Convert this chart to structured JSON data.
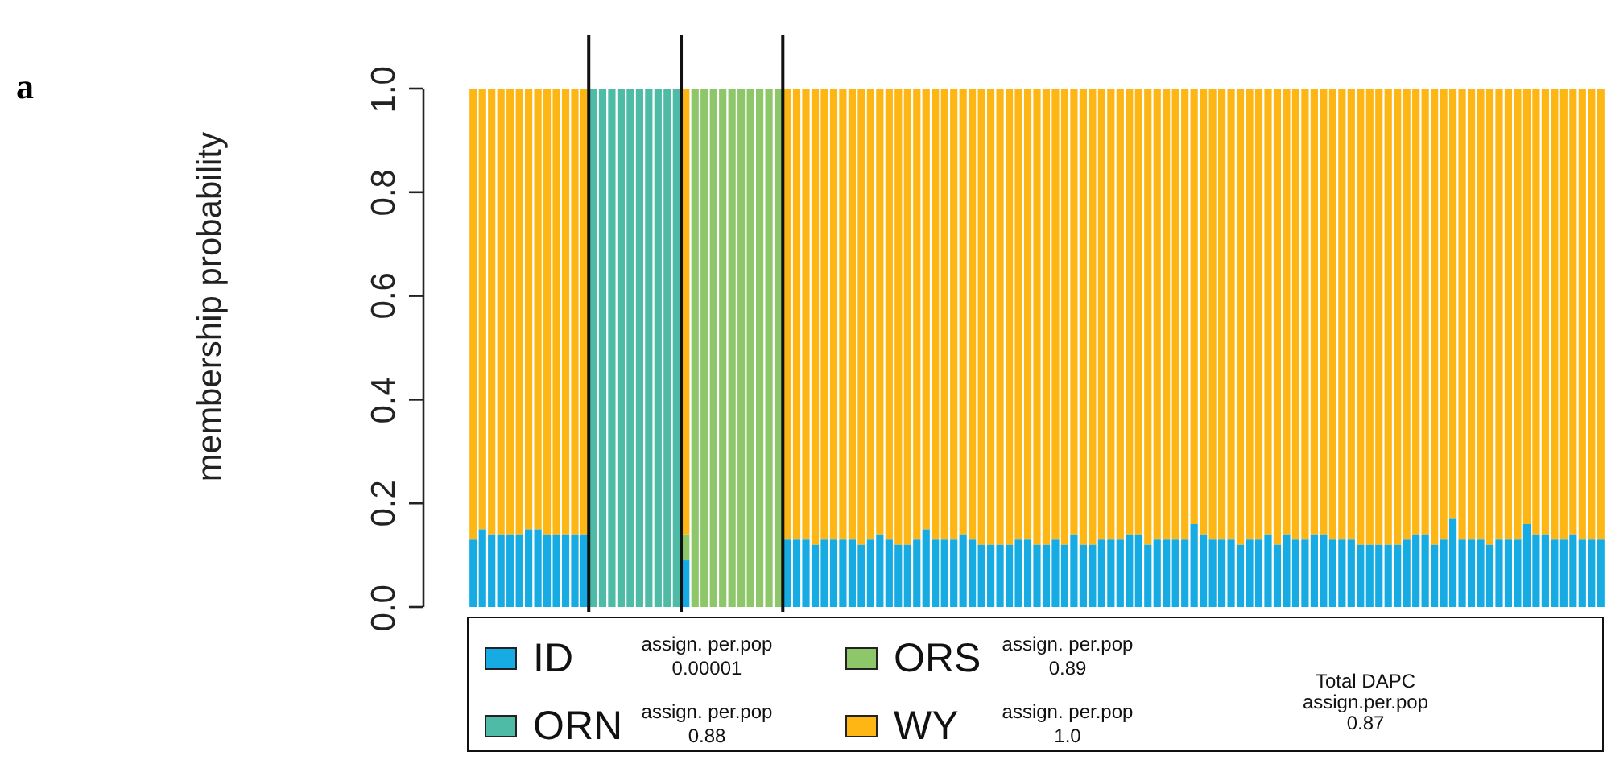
{
  "chart_data": {
    "type": "bar",
    "title": "a",
    "ylabel": "membership probability",
    "categories": [
      null,
      null,
      null,
      null,
      null,
      null,
      null,
      null,
      null,
      null,
      null,
      null,
      null,
      null,
      null,
      null,
      null,
      null,
      null,
      null,
      null,
      null,
      null,
      null,
      null,
      null,
      null,
      null,
      null,
      null,
      null,
      null,
      null,
      null,
      null,
      null,
      null,
      null,
      null,
      null,
      null,
      null,
      null,
      null,
      null,
      null,
      null,
      null,
      null,
      null,
      null,
      null,
      null,
      null,
      null,
      null,
      null,
      null,
      null,
      null,
      null,
      null,
      null,
      null,
      null,
      null,
      null,
      null,
      null,
      null,
      null,
      null,
      null,
      null,
      null,
      null,
      null,
      null,
      null,
      null,
      null,
      null,
      null,
      null,
      null,
      null,
      null,
      null,
      null,
      null,
      null,
      null,
      null,
      null,
      null,
      null,
      null,
      null,
      null,
      null,
      null,
      null,
      null,
      null,
      null,
      null,
      null,
      null,
      null,
      null,
      null,
      null,
      null,
      null,
      null,
      null,
      null,
      null,
      null,
      null,
      null,
      null,
      null
    ],
    "series": [
      {
        "name": "ID",
        "color": "#17abe3",
        "values": [
          0.13,
          0.15,
          0.14,
          0.14,
          0.14,
          0.14,
          0.15,
          0.15,
          0.14,
          0.14,
          0.14,
          0.14,
          0.14,
          null,
          null,
          null,
          null,
          null,
          null,
          null,
          null,
          null,
          null,
          0.09,
          null,
          null,
          null,
          null,
          null,
          null,
          null,
          null,
          null,
          null,
          0.13,
          0.13,
          0.13,
          0.12,
          0.13,
          0.13,
          0.13,
          0.13,
          0.12,
          0.13,
          0.14,
          0.13,
          0.12,
          0.12,
          0.13,
          0.15,
          0.13,
          0.13,
          0.13,
          0.14,
          0.13,
          0.12,
          0.12,
          0.12,
          0.12,
          0.13,
          0.13,
          0.12,
          0.12,
          0.13,
          0.12,
          0.14,
          0.12,
          0.12,
          0.13,
          0.13,
          0.13,
          0.14,
          0.14,
          0.12,
          0.13,
          0.13,
          0.13,
          0.13,
          0.16,
          0.14,
          0.13,
          0.13,
          0.13,
          0.12,
          0.13,
          0.13,
          0.14,
          0.12,
          0.14,
          0.13,
          0.13,
          0.14,
          0.14,
          0.13,
          0.13,
          0.13,
          0.12,
          0.12,
          0.12,
          0.12,
          0.12,
          0.13,
          0.14,
          0.14,
          0.12,
          0.13,
          0.17,
          0.13,
          0.13,
          0.13,
          0.12,
          0.13,
          0.13,
          0.13,
          0.16,
          0.14,
          0.14,
          0.13,
          0.13,
          0.14,
          0.13,
          0.13,
          0.13
        ]
      },
      {
        "name": "ORN",
        "color": "#4dbba6",
        "values": [
          null,
          null,
          null,
          null,
          null,
          null,
          null,
          null,
          null,
          null,
          null,
          null,
          null,
          1,
          1,
          1,
          1,
          1,
          1,
          1,
          1,
          1,
          1,
          null,
          null,
          null,
          null,
          null,
          null,
          null,
          null,
          null,
          null,
          null,
          null,
          null,
          null,
          null,
          null,
          null,
          null,
          null,
          null,
          null,
          null,
          null,
          null,
          null,
          null,
          null,
          null,
          null,
          null,
          null,
          null,
          null,
          null,
          null,
          null,
          null,
          null,
          null,
          null,
          null,
          null,
          null,
          null,
          null,
          null,
          null,
          null,
          null,
          null,
          null,
          null,
          null,
          null,
          null,
          null,
          null,
          null,
          null,
          null,
          null,
          null,
          null,
          null,
          null,
          null,
          null,
          null,
          null,
          null,
          null,
          null,
          null,
          null,
          null,
          null,
          null,
          null,
          null,
          null,
          null,
          null,
          null,
          null,
          null,
          null,
          null,
          null,
          null,
          null,
          null,
          null,
          null,
          null,
          null,
          null,
          null,
          null,
          null,
          null
        ]
      },
      {
        "name": "ORS",
        "color": "#8ec76a",
        "values": [
          null,
          null,
          null,
          null,
          null,
          null,
          null,
          null,
          null,
          null,
          null,
          null,
          null,
          null,
          null,
          null,
          null,
          null,
          null,
          null,
          null,
          null,
          null,
          0.05,
          1,
          1,
          1,
          1,
          1,
          1,
          1,
          1,
          1,
          1,
          null,
          null,
          null,
          null,
          null,
          null,
          null,
          null,
          null,
          null,
          null,
          null,
          null,
          null,
          null,
          null,
          null,
          null,
          null,
          null,
          null,
          null,
          null,
          null,
          null,
          null,
          null,
          null,
          null,
          null,
          null,
          null,
          null,
          null,
          null,
          null,
          null,
          null,
          null,
          null,
          null,
          null,
          null,
          null,
          null,
          null,
          null,
          null,
          null,
          null,
          null,
          null,
          null,
          null,
          null,
          null,
          null,
          null,
          null,
          null,
          null,
          null,
          null,
          null,
          null,
          null,
          null,
          null,
          null,
          null,
          null,
          null,
          null,
          null,
          null,
          null,
          null,
          null,
          null,
          null,
          null,
          null,
          null,
          null,
          null,
          null,
          null,
          null,
          null
        ]
      },
      {
        "name": "WY",
        "color": "#fdb614",
        "values": [
          0.87,
          0.85,
          0.86,
          0.86,
          0.86,
          0.86,
          0.85,
          0.85,
          0.86,
          0.86,
          0.86,
          0.86,
          0.86,
          null,
          null,
          null,
          null,
          null,
          null,
          null,
          null,
          null,
          null,
          0.86,
          null,
          null,
          null,
          null,
          null,
          null,
          null,
          null,
          null,
          null,
          0.87,
          0.87,
          0.87,
          0.88,
          0.87,
          0.87,
          0.87,
          0.87,
          0.88,
          0.87,
          0.86,
          0.87,
          0.88,
          0.88,
          0.87,
          0.85,
          0.87,
          0.87,
          0.87,
          0.86,
          0.87,
          0.88,
          0.88,
          0.88,
          0.88,
          0.87,
          0.87,
          0.88,
          0.88,
          0.87,
          0.88,
          0.86,
          0.88,
          0.88,
          0.87,
          0.87,
          0.87,
          0.86,
          0.86,
          0.88,
          0.87,
          0.87,
          0.87,
          0.87,
          0.84,
          0.86,
          0.87,
          0.87,
          0.87,
          0.88,
          0.87,
          0.87,
          0.86,
          0.88,
          0.86,
          0.87,
          0.87,
          0.86,
          0.86,
          0.87,
          0.87,
          0.87,
          0.88,
          0.88,
          0.88,
          0.88,
          0.88,
          0.87,
          0.86,
          0.86,
          0.88,
          0.87,
          0.83,
          0.87,
          0.87,
          0.87,
          0.88,
          0.87,
          0.87,
          0.87,
          0.84,
          0.86,
          0.86,
          0.87,
          0.87,
          0.86,
          0.87,
          0.87,
          0.87
        ]
      }
    ],
    "stacked": true,
    "ylim": [
      0,
      1
    ],
    "yticks": [
      {
        "value": 0,
        "label": "0.0"
      },
      0.2,
      0.4,
      0.6,
      0.8,
      {
        "value": 1,
        "label": "1.0"
      }
    ],
    "tick_labels": "y",
    "legend": "bottom",
    "annotations": [
      "assign. per.pop\n0.00001",
      "assign. per.pop\n0.88",
      "assign. per.pop\n0.89",
      "assign. per.pop\n1.0",
      "Total DAPC\nassign.per.pop\n0.87"
    ]
  }
}
